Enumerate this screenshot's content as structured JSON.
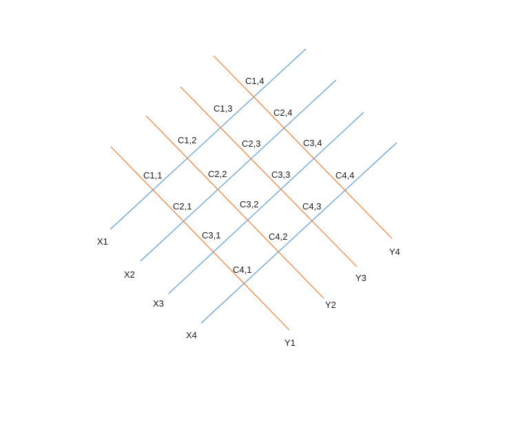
{
  "diagram": {
    "colors": {
      "x_lines": "#5b9bd5",
      "y_lines": "#ed7d31",
      "text": "#1a1a1a",
      "background": "#ffffff"
    },
    "x_lines": [
      {
        "label": "X1"
      },
      {
        "label": "X2"
      },
      {
        "label": "X3"
      },
      {
        "label": "X4"
      }
    ],
    "y_lines": [
      {
        "label": "Y1"
      },
      {
        "label": "Y2"
      },
      {
        "label": "Y3"
      },
      {
        "label": "Y4"
      }
    ],
    "cells": [
      [
        "C1,1",
        "C1,2",
        "C1,3",
        "C1,4"
      ],
      [
        "C2,1",
        "C2,2",
        "C2,3",
        "C2,4"
      ],
      [
        "C3,1",
        "C3,2",
        "C3,3",
        "C3,4"
      ],
      [
        "C4,1",
        "C4,2",
        "C4,3",
        "C4,4"
      ]
    ]
  }
}
